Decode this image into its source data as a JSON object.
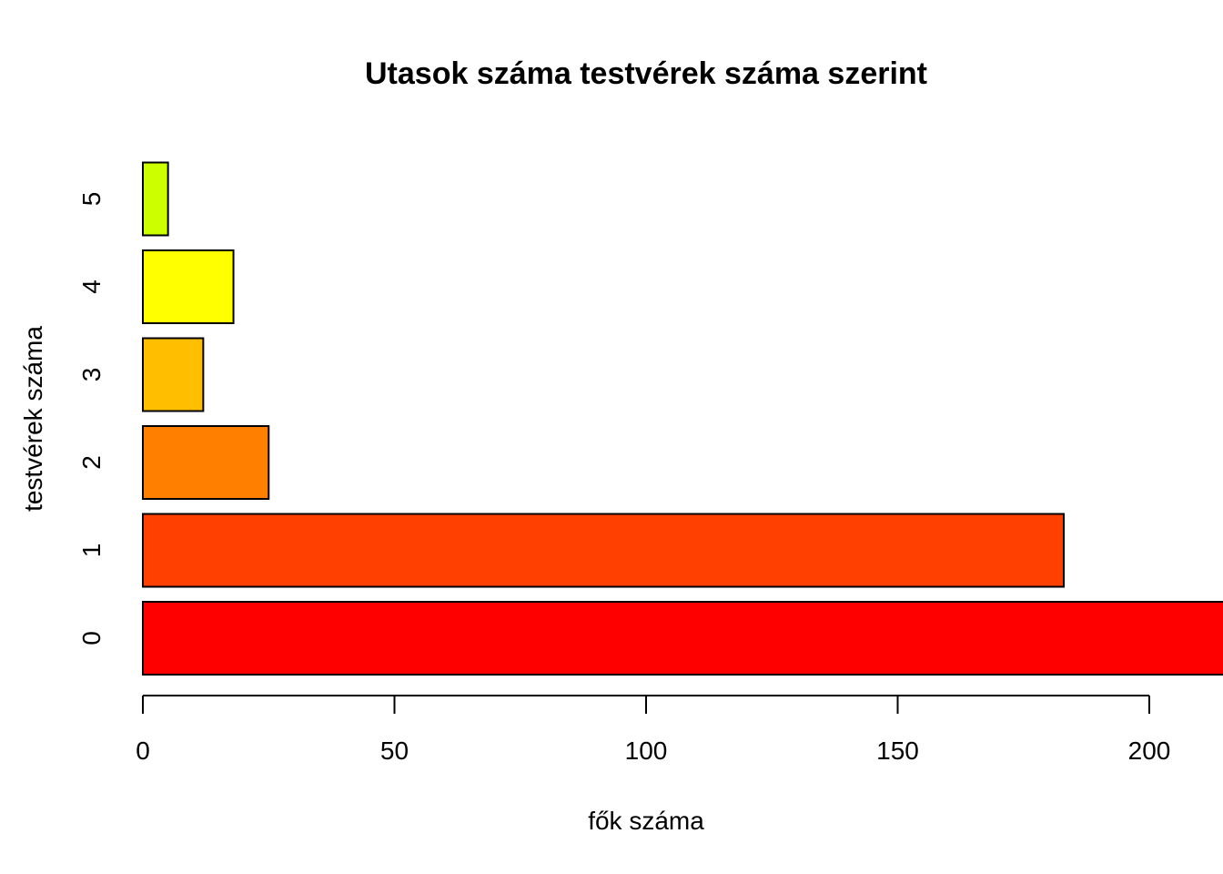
{
  "chart_data": {
    "type": "bar",
    "orientation": "horizontal",
    "title": "Utasok száma testvérek száma szerint",
    "xlabel": "fők száma",
    "ylabel": "testvérek száma",
    "categories": [
      "0",
      "1",
      "2",
      "3",
      "4",
      "5"
    ],
    "values": [
      215,
      183,
      25,
      12,
      18,
      5
    ],
    "colors": [
      "#FF0000",
      "#FF4000",
      "#FF8000",
      "#FFBF00",
      "#FFFF00",
      "#CCFF00"
    ],
    "x_ticks": [
      0,
      50,
      100,
      150,
      200
    ],
    "xlim": [
      0,
      215
    ],
    "grid": false,
    "legend": "none"
  }
}
